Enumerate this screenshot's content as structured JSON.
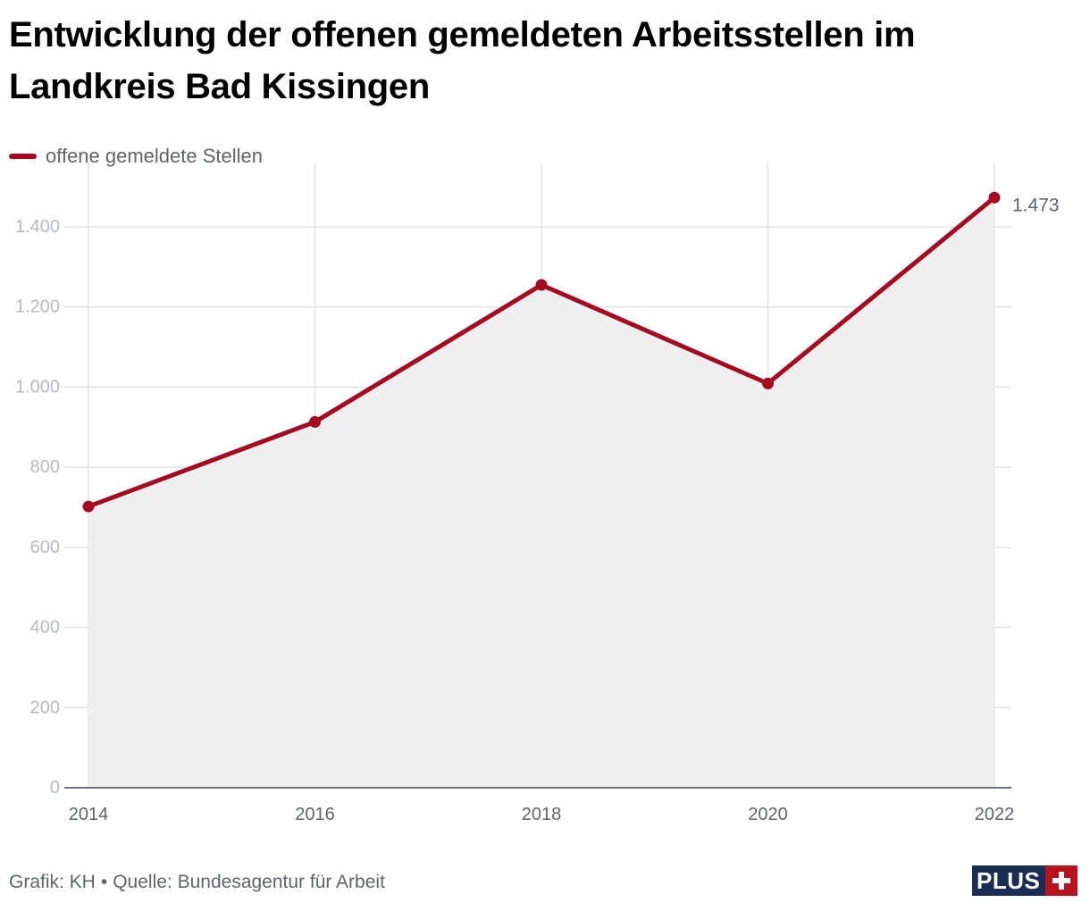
{
  "title": "Entwicklung der offenen gemeldeten Arbeitsstellen im Landkreis Bad Kissingen",
  "legend": {
    "label": "offene gemeldete Stellen"
  },
  "footer": {
    "credit": "Grafik: KH",
    "separator": "•",
    "source": "Quelle: Bundesagentur für Arbeit"
  },
  "badge": {
    "label": "PLUS"
  },
  "colors": {
    "line": "#a50a21",
    "area": "#efefef",
    "grid": "#e3e3e3",
    "tick_text": "#b5bcc3",
    "label_text": "#5c6670",
    "badge_navy": "#1b2d55",
    "badge_red": "#b8121f"
  },
  "chart_data": {
    "type": "area",
    "title": "Entwicklung der offenen gemeldeten Arbeitsstellen im Landkreis Bad Kissingen",
    "xlabel": "",
    "ylabel": "",
    "x": [
      2014,
      2016,
      2018,
      2020,
      2022
    ],
    "x_tick_labels": [
      "2014",
      "2016",
      "2018",
      "2020",
      "2022"
    ],
    "series": [
      {
        "name": "offene gemeldete Stellen",
        "values": [
          702,
          913,
          1255,
          1009,
          1473
        ]
      }
    ],
    "ylim": [
      0,
      1560
    ],
    "y_ticks": [
      0,
      200,
      400,
      600,
      800,
      1000,
      1200,
      1400
    ],
    "y_tick_labels": [
      "0",
      "200",
      "400",
      "600",
      "800",
      "1.000",
      "1.200",
      "1.400"
    ],
    "end_label": "1.473",
    "grid": true,
    "legend_position": "top-left"
  }
}
